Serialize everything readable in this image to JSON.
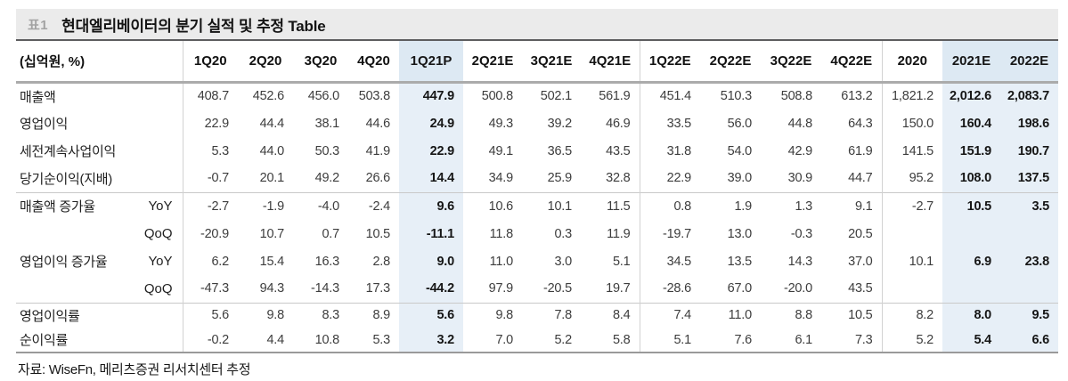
{
  "title": {
    "tag": "표1",
    "text": "현대엘리베이터의 분기 실적 및 추정 Table"
  },
  "source": "자료: WiseFn, 메리츠증권 리서치센터 추정",
  "colors": {
    "highlight_body": "#e7eff7",
    "highlight_header": "#dde9f3",
    "titlebar_bg": "#ebebeb"
  },
  "table": {
    "unit_label": "(십억원, %)",
    "columns": [
      "1Q20",
      "2Q20",
      "3Q20",
      "4Q20",
      "1Q21P",
      "2Q21E",
      "3Q21E",
      "4Q21E",
      "1Q22E",
      "2Q22E",
      "3Q22E",
      "4Q22E",
      "2020",
      "2021E",
      "2022E"
    ],
    "highlight_columns": [
      4,
      13,
      14
    ],
    "divider_after_columns": [
      7,
      11
    ],
    "rows": [
      {
        "label": "매출액",
        "sub": "",
        "section_start": false,
        "values": [
          "408.7",
          "452.6",
          "456.0",
          "503.8",
          "447.9",
          "500.8",
          "502.1",
          "561.9",
          "451.4",
          "510.3",
          "508.8",
          "613.2",
          "1,821.2",
          "2,012.6",
          "2,083.7"
        ]
      },
      {
        "label": "영업이익",
        "sub": "",
        "section_start": false,
        "values": [
          "22.9",
          "44.4",
          "38.1",
          "44.6",
          "24.9",
          "49.3",
          "39.2",
          "46.9",
          "33.5",
          "56.0",
          "44.8",
          "64.3",
          "150.0",
          "160.4",
          "198.6"
        ]
      },
      {
        "label": "세전계속사업이익",
        "sub": "",
        "section_start": false,
        "values": [
          "5.3",
          "44.0",
          "50.3",
          "41.9",
          "22.9",
          "49.1",
          "36.5",
          "43.5",
          "31.8",
          "54.0",
          "42.9",
          "61.9",
          "141.5",
          "151.9",
          "190.7"
        ]
      },
      {
        "label": "당기순이익(지배)",
        "sub": "",
        "section_start": false,
        "values": [
          "-0.7",
          "20.1",
          "49.2",
          "26.6",
          "14.4",
          "34.9",
          "25.9",
          "32.8",
          "22.9",
          "39.0",
          "30.9",
          "44.7",
          "95.2",
          "108.0",
          "137.5"
        ]
      },
      {
        "label": "매출액 증가율",
        "sub": "YoY",
        "section_start": true,
        "values": [
          "-2.7",
          "-1.9",
          "-4.0",
          "-2.4",
          "9.6",
          "10.6",
          "10.1",
          "11.5",
          "0.8",
          "1.9",
          "1.3",
          "9.1",
          "-2.7",
          "10.5",
          "3.5"
        ]
      },
      {
        "label": "",
        "sub": "QoQ",
        "section_start": false,
        "values": [
          "-20.9",
          "10.7",
          "0.7",
          "10.5",
          "-11.1",
          "11.8",
          "0.3",
          "11.9",
          "-19.7",
          "13.0",
          "-0.3",
          "20.5",
          "",
          "",
          ""
        ]
      },
      {
        "label": "영업이익 증가율",
        "sub": "YoY",
        "section_start": false,
        "values": [
          "6.2",
          "15.4",
          "16.3",
          "2.8",
          "9.0",
          "11.0",
          "3.0",
          "5.1",
          "34.5",
          "13.5",
          "14.3",
          "37.0",
          "10.1",
          "6.9",
          "23.8"
        ]
      },
      {
        "label": "",
        "sub": "QoQ",
        "section_start": false,
        "values": [
          "-47.3",
          "94.3",
          "-14.3",
          "17.3",
          "-44.2",
          "97.9",
          "-20.5",
          "19.7",
          "-28.6",
          "67.0",
          "-20.0",
          "43.5",
          "",
          "",
          ""
        ]
      },
      {
        "label": "영업이익률",
        "sub": "",
        "section_start": true,
        "values": [
          "5.6",
          "9.8",
          "8.3",
          "8.9",
          "5.6",
          "9.8",
          "7.8",
          "8.4",
          "7.4",
          "11.0",
          "8.8",
          "10.5",
          "8.2",
          "8.0",
          "9.5"
        ]
      },
      {
        "label": "순이익률",
        "sub": "",
        "section_start": false,
        "values": [
          "-0.2",
          "4.4",
          "10.8",
          "5.3",
          "3.2",
          "7.0",
          "5.2",
          "5.8",
          "5.1",
          "7.6",
          "6.1",
          "7.3",
          "5.2",
          "5.4",
          "6.6"
        ]
      }
    ]
  }
}
